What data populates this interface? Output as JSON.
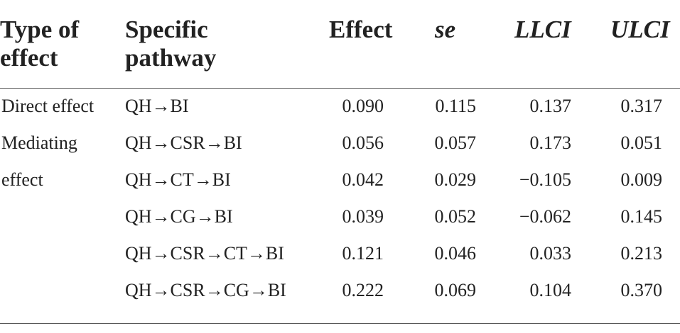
{
  "table": {
    "headers": {
      "type_line1": "Type of",
      "type_line2": "effect",
      "pathway_line1": "Specific",
      "pathway_line2": "pathway",
      "effect": "Effect",
      "se": "se",
      "llci": "LLCI",
      "ulci": "ULCI"
    },
    "types": {
      "direct": "Direct effect",
      "mediating_line1": "Mediating",
      "mediating_line2": "effect"
    },
    "rows": [
      {
        "pathway": "QH→BI",
        "effect": "0.090",
        "se": "0.115",
        "llci": "0.137",
        "ulci": "0.317"
      },
      {
        "pathway": "QH→CSR→BI",
        "effect": "0.056",
        "se": "0.057",
        "llci": "0.173",
        "ulci": "0.051"
      },
      {
        "pathway": "QH→CT→BI",
        "effect": "0.042",
        "se": "0.029",
        "llci": "−0.105",
        "ulci": "0.009"
      },
      {
        "pathway": "QH→CG→BI",
        "effect": "0.039",
        "se": "0.052",
        "llci": "−0.062",
        "ulci": "0.145"
      },
      {
        "pathway": "QH→CSR→CT→BI",
        "effect": "0.121",
        "se": "0.046",
        "llci": "0.033",
        "ulci": "0.213"
      },
      {
        "pathway": "QH→CSR→CG→BI",
        "effect": "0.222",
        "se": "0.069",
        "llci": "0.104",
        "ulci": "0.370"
      }
    ]
  }
}
